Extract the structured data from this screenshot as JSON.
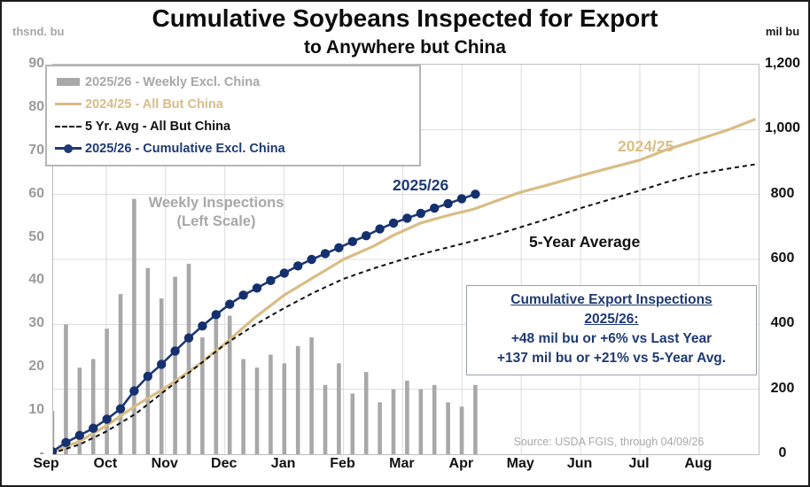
{
  "header": {
    "title": "Cumulative Soybeans Inspected for Export",
    "subtitle": "to Anywhere but China"
  },
  "annotations": {
    "weekly_note_line1": "Weekly Inspections",
    "weekly_note_line2": "(Left Scale)",
    "label_2025_26": "2025/26",
    "label_2024_25": "2024/25",
    "label_5yr": "5-Year Average"
  },
  "info_box": {
    "line1": "Cumulative Export Inspections",
    "line2": "2025/26:",
    "line3": "+48 mil bu or +6% vs Last Year",
    "line4": "+137 mil bu or +21% vs 5-Year Avg."
  },
  "source": "Source: USDA FGIS, through 04/09/26",
  "colors": {
    "bar_gray": "#a8a8a8",
    "tan": "#d9bd85",
    "navy": "#1e3a74",
    "navy_dot": "#14306e",
    "black": "#111111",
    "gridline": "#dcdcdc"
  },
  "chart_data": {
    "type": "bar",
    "subtype": "combo bar + cumulative lines, dual axis",
    "months": [
      "Sep",
      "Oct",
      "Nov",
      "Dec",
      "Jan",
      "Feb",
      "Mar",
      "Apr",
      "May",
      "Jun",
      "Jul",
      "Aug"
    ],
    "left_axis": {
      "unit": "thsnd. bu",
      "range": [
        0,
        90
      ],
      "ticks": [
        {
          "label": "90",
          "v": 90
        },
        {
          "label": "80",
          "v": 80
        },
        {
          "label": "70",
          "v": 70
        },
        {
          "label": "60",
          "v": 60
        },
        {
          "label": "50",
          "v": 50
        },
        {
          "label": "40",
          "v": 40
        },
        {
          "label": "30",
          "v": 30
        },
        {
          "label": "20",
          "v": 20
        },
        {
          "label": "10",
          "v": 10
        },
        {
          "label": "-",
          "v": 0
        }
      ]
    },
    "right_axis": {
      "unit": "mil bu",
      "range": [
        0,
        1200
      ],
      "ticks": [
        {
          "label": "1,200",
          "v": 1200
        },
        {
          "label": "1,000",
          "v": 1000
        },
        {
          "label": "800",
          "v": 800
        },
        {
          "label": "600",
          "v": 600
        },
        {
          "label": "400",
          "v": 400
        },
        {
          "label": "200",
          "v": 200
        },
        {
          "label": "0",
          "v": 0
        }
      ]
    },
    "legend": [
      {
        "key": "weekly",
        "label": "2025/26 - Weekly Excl. China",
        "swatch": "bar",
        "color": "#a8a8a8"
      },
      {
        "key": "prev_year",
        "label": "2024/25 - All But China",
        "swatch": "line",
        "color": "#d9bd85"
      },
      {
        "key": "five_yr",
        "label": "5 Yr. Avg - All But China",
        "swatch": "dashed",
        "color": "#111111"
      },
      {
        "key": "cumulative",
        "label": "2025/26 - Cumulative Excl. China",
        "swatch": "dotline",
        "color": "#1e3a74"
      }
    ],
    "weekly_bars_2025_26_left_scale": [
      10,
      30,
      20,
      22,
      29,
      37,
      59,
      43,
      36,
      41,
      44,
      27,
      33,
      32,
      22,
      20,
      23,
      21,
      25,
      27,
      16,
      21,
      14,
      19,
      12,
      15,
      17,
      15,
      16,
      12,
      11,
      16
    ],
    "cumulative_2025_26_mil_bu": [
      8,
      36,
      58,
      80,
      108,
      140,
      195,
      240,
      277,
      318,
      358,
      395,
      430,
      462,
      490,
      512,
      535,
      558,
      580,
      600,
      618,
      636,
      655,
      673,
      694,
      712,
      727,
      742,
      758,
      772,
      787,
      801
    ],
    "line_2024_25_mil_bu": [
      [
        0.07,
        5
      ],
      [
        0.55,
        40
      ],
      [
        1.0,
        88
      ],
      [
        1.5,
        150
      ],
      [
        2.0,
        205
      ],
      [
        2.5,
        268
      ],
      [
        3.0,
        340
      ],
      [
        3.5,
        420
      ],
      [
        4.0,
        490
      ],
      [
        4.5,
        545
      ],
      [
        5.0,
        600
      ],
      [
        5.5,
        640
      ],
      [
        5.85,
        675
      ],
      [
        6.3,
        712
      ],
      [
        6.75,
        735
      ],
      [
        7.2,
        755
      ],
      [
        7.95,
        805
      ],
      [
        8.5,
        832
      ],
      [
        9.0,
        858
      ],
      [
        9.5,
        882
      ],
      [
        10.0,
        906
      ],
      [
        10.45,
        938
      ],
      [
        11.0,
        970
      ],
      [
        11.5,
        1000
      ],
      [
        11.95,
        1032
      ]
    ],
    "line_5yr_avg_mil_bu": [
      [
        0.07,
        2
      ],
      [
        0.55,
        30
      ],
      [
        1.0,
        70
      ],
      [
        1.5,
        125
      ],
      [
        2.0,
        197
      ],
      [
        2.5,
        266
      ],
      [
        3.0,
        338
      ],
      [
        3.5,
        398
      ],
      [
        4.0,
        450
      ],
      [
        4.5,
        498
      ],
      [
        5.0,
        540
      ],
      [
        5.5,
        572
      ],
      [
        6.0,
        600
      ],
      [
        6.5,
        625
      ],
      [
        7.0,
        648
      ],
      [
        7.5,
        672
      ],
      [
        8.0,
        700
      ],
      [
        8.5,
        728
      ],
      [
        9.0,
        758
      ],
      [
        9.5,
        785
      ],
      [
        10.0,
        812
      ],
      [
        10.45,
        838
      ],
      [
        11.0,
        864
      ],
      [
        11.5,
        880
      ],
      [
        11.95,
        893
      ]
    ]
  }
}
